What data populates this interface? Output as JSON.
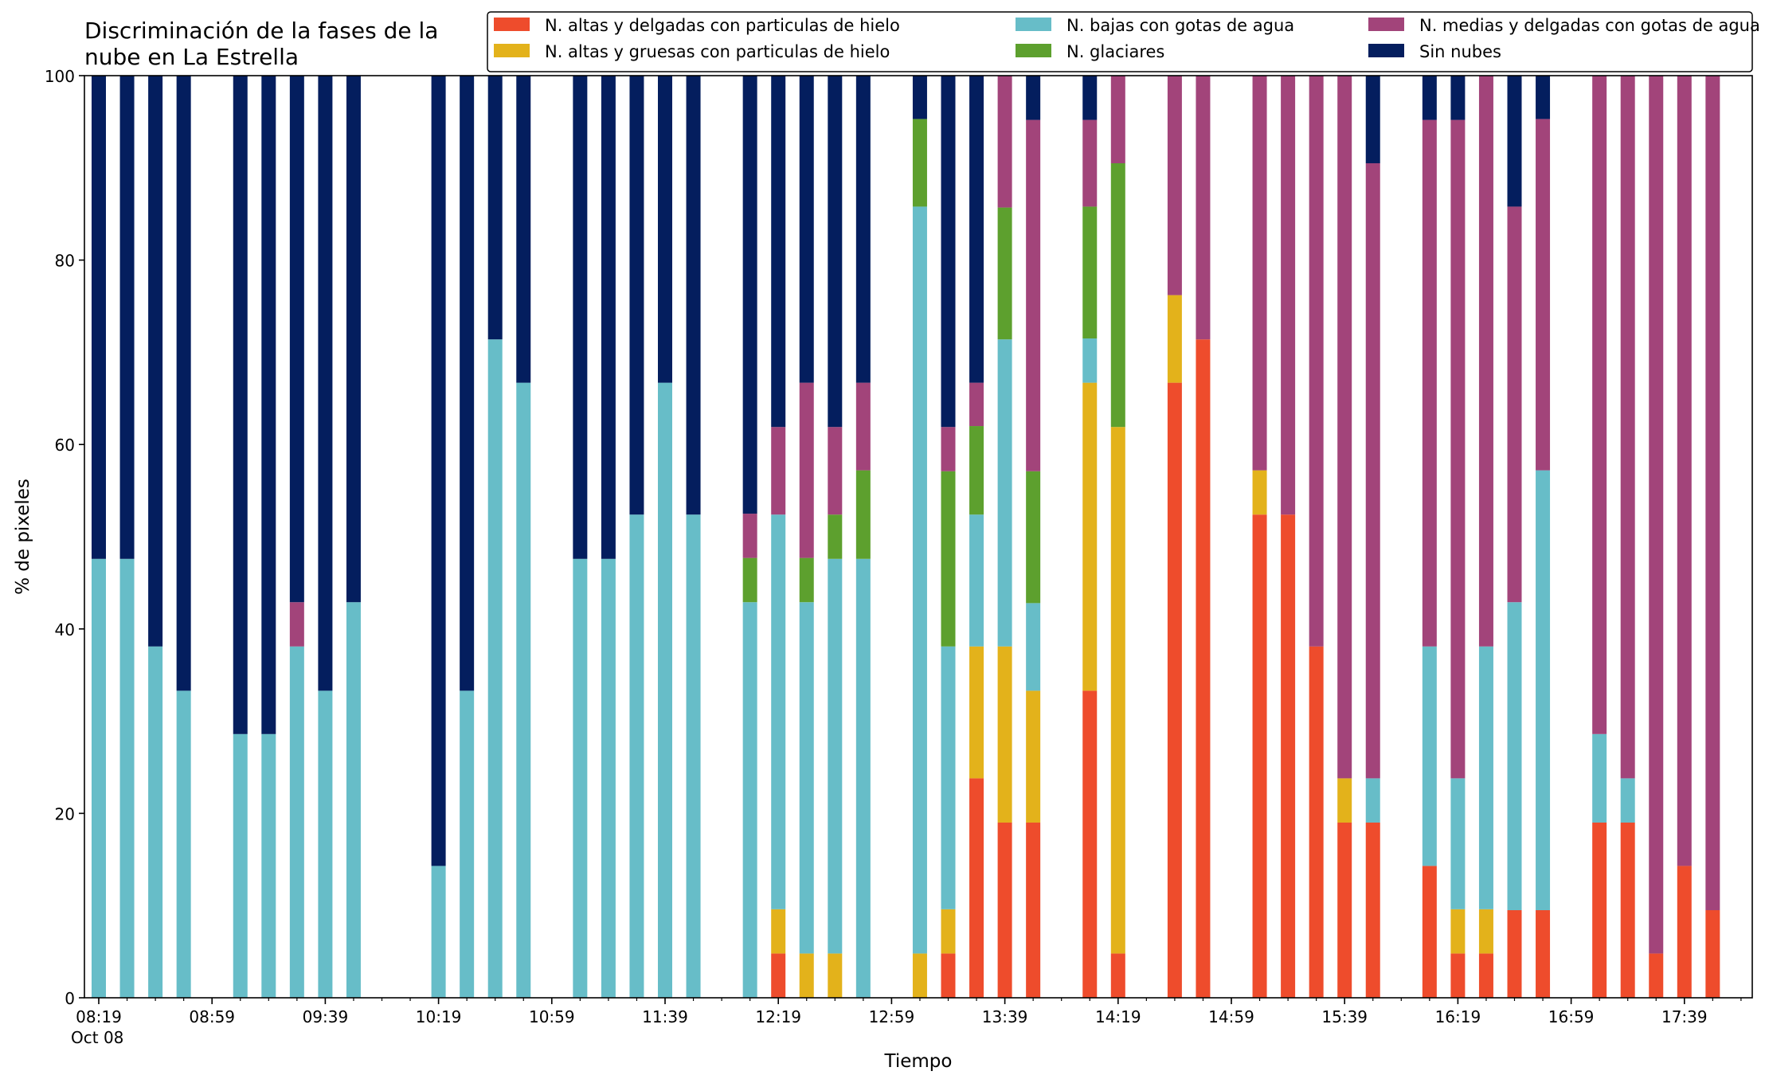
{
  "chart_data": {
    "type": "bar",
    "stacked": true,
    "title": "Discriminación de la fases de la\nnube en La Estrella",
    "xlabel": "Tiempo",
    "ylabel": "% de pixeles",
    "ylim": [
      0,
      100
    ],
    "yticks": [
      0,
      20,
      40,
      60,
      80,
      100
    ],
    "x_start": "08:19",
    "x_step_minutes": 10,
    "x_ticks": [
      {
        "label": "08:19",
        "sub": "Oct 08",
        "slot": 0
      },
      {
        "label": "08:59",
        "slot": 4
      },
      {
        "label": "09:39",
        "slot": 8
      },
      {
        "label": "10:19",
        "slot": 12
      },
      {
        "label": "10:59",
        "slot": 16
      },
      {
        "label": "11:39",
        "slot": 20
      },
      {
        "label": "12:19",
        "slot": 24
      },
      {
        "label": "12:59",
        "slot": 28
      },
      {
        "label": "13:39",
        "slot": 32
      },
      {
        "label": "14:19",
        "slot": 36
      },
      {
        "label": "14:59",
        "slot": 40
      },
      {
        "label": "15:39",
        "slot": 44
      },
      {
        "label": "16:19",
        "slot": 48
      },
      {
        "label": "16:59",
        "slot": 52
      },
      {
        "label": "17:39",
        "slot": 56
      }
    ],
    "legend_position": "top-right",
    "series": [
      {
        "name": "N. altas y delgadas con particulas de hielo",
        "color": "#ee4c2c"
      },
      {
        "name": "N. altas y gruesas con particulas de hielo",
        "color": "#e3b21b"
      },
      {
        "name": "N. bajas con gotas de agua",
        "color": "#67bdc8"
      },
      {
        "name": "N. glaciares",
        "color": "#5da02e"
      },
      {
        "name": "N. medias y delgadas con gotas de agua",
        "color": "#a2447a"
      },
      {
        "name": "Sin nubes",
        "color": "#041e5e"
      }
    ],
    "bars": [
      {
        "time": "08:19",
        "values": [
          0,
          0,
          47.6,
          0,
          0,
          52.4
        ]
      },
      {
        "time": "08:29",
        "values": [
          0,
          0,
          47.6,
          0,
          0,
          52.4
        ]
      },
      {
        "time": "08:39",
        "values": [
          0,
          0,
          38.1,
          0,
          0,
          61.9
        ]
      },
      {
        "time": "08:49",
        "values": [
          0,
          0,
          33.3,
          0,
          0,
          66.7
        ]
      },
      {
        "time": "09:09",
        "values": [
          0,
          0,
          28.6,
          0,
          0,
          71.4
        ]
      },
      {
        "time": "09:19",
        "values": [
          0,
          0,
          28.6,
          0,
          0,
          71.4
        ]
      },
      {
        "time": "09:29",
        "values": [
          0,
          0,
          38.1,
          0,
          4.8,
          57.1
        ]
      },
      {
        "time": "09:39",
        "values": [
          0,
          0,
          33.3,
          0,
          0,
          66.7
        ]
      },
      {
        "time": "09:49",
        "values": [
          0,
          0,
          42.9,
          0,
          0,
          57.1
        ]
      },
      {
        "time": "10:19",
        "values": [
          0,
          0,
          14.3,
          0,
          0,
          85.7
        ]
      },
      {
        "time": "10:29",
        "values": [
          0,
          0,
          33.3,
          0,
          0,
          66.7
        ]
      },
      {
        "time": "10:39",
        "values": [
          0,
          0,
          71.4,
          0,
          0,
          28.6
        ]
      },
      {
        "time": "10:49",
        "values": [
          0,
          0,
          66.7,
          0,
          0,
          33.3
        ]
      },
      {
        "time": "11:09",
        "values": [
          0,
          0,
          47.6,
          0,
          0,
          52.4
        ]
      },
      {
        "time": "11:19",
        "values": [
          0,
          0,
          47.6,
          0,
          0,
          52.4
        ]
      },
      {
        "time": "11:29",
        "values": [
          0,
          0,
          52.4,
          0,
          0,
          47.6
        ]
      },
      {
        "time": "11:39",
        "values": [
          0,
          0,
          66.7,
          0,
          0,
          33.3
        ]
      },
      {
        "time": "11:49",
        "values": [
          0,
          0,
          52.4,
          0,
          0,
          47.6
        ]
      },
      {
        "time": "12:09",
        "values": [
          0,
          0,
          42.9,
          4.8,
          4.8,
          47.5
        ]
      },
      {
        "time": "12:19",
        "values": [
          4.8,
          4.8,
          42.8,
          0,
          9.5,
          38.1
        ]
      },
      {
        "time": "12:29",
        "values": [
          0,
          4.8,
          38.1,
          4.8,
          19.0,
          33.3
        ]
      },
      {
        "time": "12:39",
        "values": [
          0,
          4.8,
          42.8,
          4.8,
          9.5,
          38.1
        ]
      },
      {
        "time": "12:49",
        "values": [
          0,
          0,
          47.6,
          9.6,
          9.5,
          33.3
        ]
      },
      {
        "time": "13:09",
        "values": [
          0,
          4.8,
          81.0,
          9.5,
          0,
          4.7
        ]
      },
      {
        "time": "13:19",
        "values": [
          4.8,
          4.8,
          28.5,
          19.0,
          4.8,
          38.1
        ]
      },
      {
        "time": "13:29",
        "values": [
          23.8,
          14.3,
          14.3,
          9.6,
          4.7,
          33.3
        ]
      },
      {
        "time": "13:39",
        "values": [
          19.0,
          19.1,
          33.3,
          14.3,
          14.3,
          0
        ]
      },
      {
        "time": "13:49",
        "values": [
          19.0,
          14.3,
          9.5,
          14.3,
          38.1,
          4.8
        ]
      },
      {
        "time": "14:09",
        "values": [
          33.3,
          33.4,
          4.8,
          14.3,
          9.4,
          4.8
        ]
      },
      {
        "time": "14:19",
        "values": [
          4.8,
          57.1,
          0,
          28.6,
          9.5,
          0
        ]
      },
      {
        "time": "14:39",
        "values": [
          66.7,
          9.5,
          0,
          0,
          23.8,
          0
        ]
      },
      {
        "time": "14:49",
        "values": [
          71.4,
          0,
          0,
          0,
          28.6,
          0
        ]
      },
      {
        "time": "15:09",
        "values": [
          52.4,
          4.8,
          0,
          0,
          42.8,
          0
        ]
      },
      {
        "time": "15:19",
        "values": [
          52.4,
          0,
          0,
          0,
          47.6,
          0
        ]
      },
      {
        "time": "15:29",
        "values": [
          38.1,
          0,
          0,
          0,
          61.9,
          0
        ]
      },
      {
        "time": "15:39",
        "values": [
          19.0,
          4.8,
          0,
          0,
          76.2,
          0
        ]
      },
      {
        "time": "15:49",
        "values": [
          19.0,
          0,
          4.8,
          0,
          66.7,
          9.5
        ]
      },
      {
        "time": "16:09",
        "values": [
          14.3,
          0,
          23.8,
          0,
          57.1,
          4.8
        ]
      },
      {
        "time": "16:19",
        "values": [
          4.8,
          4.8,
          14.2,
          0,
          71.4,
          4.8
        ]
      },
      {
        "time": "16:29",
        "values": [
          4.8,
          4.8,
          28.5,
          0,
          61.9,
          0
        ]
      },
      {
        "time": "16:39",
        "values": [
          9.5,
          0,
          33.4,
          0,
          42.9,
          14.2
        ]
      },
      {
        "time": "16:49",
        "values": [
          9.5,
          0,
          47.7,
          0,
          38.1,
          4.7
        ]
      },
      {
        "time": "17:09",
        "values": [
          19.0,
          0,
          9.6,
          0,
          71.4,
          0
        ]
      },
      {
        "time": "17:19",
        "values": [
          19.0,
          0,
          4.8,
          0,
          76.2,
          0
        ]
      },
      {
        "time": "17:29",
        "values": [
          4.8,
          0,
          0,
          0,
          95.2,
          0
        ]
      },
      {
        "time": "17:39",
        "values": [
          14.3,
          0,
          0,
          0,
          85.7,
          0
        ]
      },
      {
        "time": "17:49",
        "values": [
          9.5,
          0,
          0,
          0,
          90.5,
          0
        ]
      }
    ]
  }
}
